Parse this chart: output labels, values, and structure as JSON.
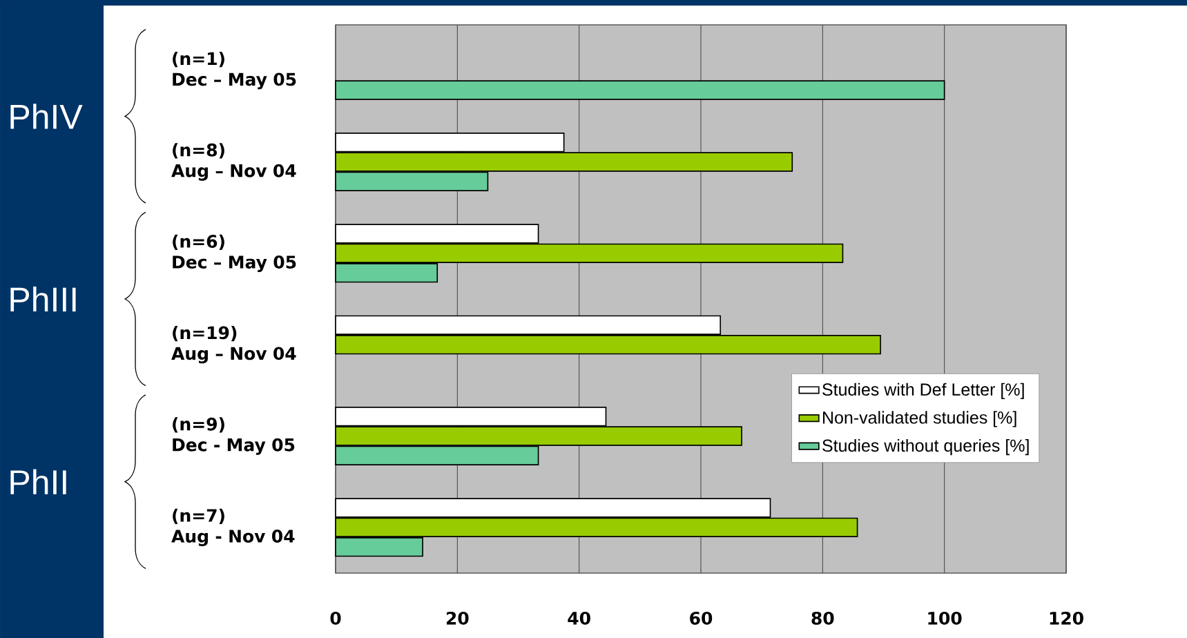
{
  "chart_data": {
    "type": "bar",
    "orientation": "horizontal",
    "categories": [
      "(n=1) Dec – May 05",
      "(n=8) Aug – Nov 04",
      "(n=6) Dec – May 05",
      "(n=19) Aug – Nov 04",
      "(n=9) Dec - May 05",
      "(n=7) Aug - Nov 04"
    ],
    "series": [
      {
        "name": "Studies with Def Letter [%]",
        "color": "#ffffff",
        "values": [
          null,
          37.5,
          33.3,
          63.2,
          44.4,
          71.4
        ]
      },
      {
        "name": "Non-validated studies [%]",
        "color": "#99cc00",
        "values": [
          null,
          75,
          83.3,
          89.5,
          66.7,
          85.7
        ]
      },
      {
        "name": "Studies without queries [%]",
        "color": "#66cc99",
        "values": [
          100,
          25,
          16.7,
          null,
          33.3,
          14.3
        ]
      }
    ],
    "xlim": [
      0,
      120
    ],
    "xticks": [
      0,
      20,
      40,
      60,
      80,
      100,
      120
    ],
    "grid": "x",
    "legend": "right",
    "annotations": [
      "PhIV",
      "PhIII",
      "PhII"
    ]
  }
}
